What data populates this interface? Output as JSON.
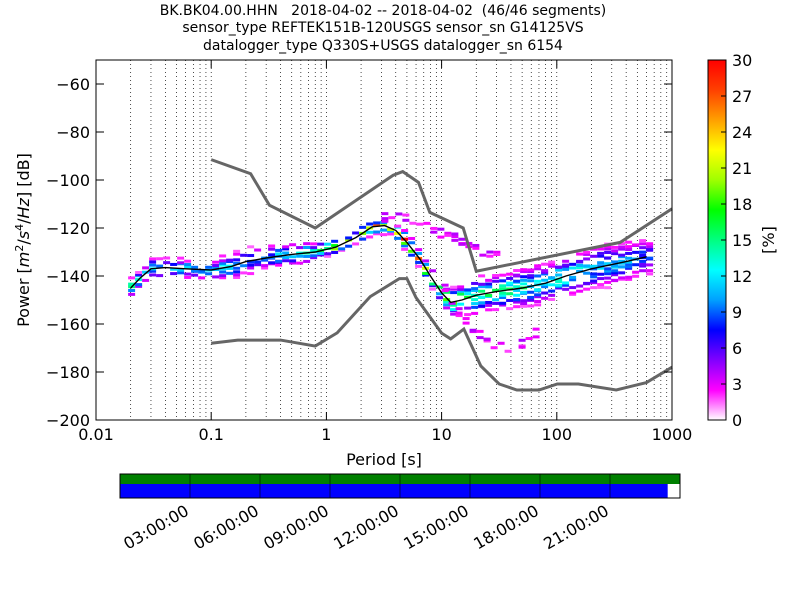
{
  "title": {
    "line1": "BK.BK04.00.HHN   2018-04-02 -- 2018-04-02  (46/46 segments)",
    "line2": "sensor_type REFTEK151B-120USGS sensor_sn G14125VS",
    "line3": "datalogger_type Q330S+USGS datalogger_sn 6154"
  },
  "chart_data": {
    "type": "heatmap",
    "title": "BK.BK04.00.HHN   2018-04-02 -- 2018-04-02  (46/46 segments)",
    "xlabel": "Period [s]",
    "ylabel": "Power [m²/s⁴/Hz] [dB]",
    "x_scale": "log",
    "xlim": [
      0.01,
      1000
    ],
    "ylim": [
      -200,
      -50
    ],
    "x_ticks": [
      "0.01",
      "0.1",
      "1",
      "10",
      "100",
      "1000"
    ],
    "y_ticks": [
      "−60",
      "−80",
      "−100",
      "−120",
      "−140",
      "−160",
      "−180",
      "−200"
    ],
    "grid": "vertical dotted",
    "colorbar": {
      "label": "[%]",
      "range": [
        0,
        30
      ],
      "ticks": [
        "30",
        "27",
        "24",
        "21",
        "18",
        "15",
        "12",
        "9",
        "6",
        "3",
        "0"
      ],
      "colormap": [
        "#ffffff",
        "#ff00ff",
        "#8000ff",
        "#0000ff",
        "#00a0ff",
        "#00ffff",
        "#00ff80",
        "#00ff00",
        "#a0ff00",
        "#ffff00",
        "#ffa000",
        "#ff4000",
        "#ff0000"
      ]
    },
    "noise_models": {
      "high": {
        "x": [
          0.1,
          0.22,
          0.32,
          0.8,
          3.8,
          4.6,
          6.3,
          7.9,
          15.4,
          20,
          354.8,
          1000
        ],
        "y": [
          -91.5,
          -97.4,
          -110.5,
          -120,
          -98,
          -96.5,
          -101,
          -113.5,
          -120,
          -138,
          -126,
          -112
        ]
      },
      "low": {
        "x": [
          0.1,
          0.17,
          0.4,
          0.8,
          1.24,
          2.4,
          4.3,
          5,
          6,
          10,
          12,
          15.6,
          21.9,
          31.6,
          45,
          70,
          101,
          154,
          328,
          600,
          1000
        ],
        "y": [
          -168,
          -166.7,
          -166.7,
          -169.2,
          -163.7,
          -148.6,
          -141.1,
          -141.1,
          -149,
          -163.8,
          -166.2,
          -162.1,
          -177.5,
          -185,
          -187.5,
          -187.5,
          -185,
          -185,
          -187.5,
          -184.4,
          -178
        ]
      }
    },
    "mode": {
      "x": [
        0.02,
        0.024,
        0.03,
        0.04,
        0.06,
        0.1,
        0.15,
        0.2,
        0.3,
        0.5,
        0.8,
        1.2,
        1.8,
        2.5,
        3.2,
        4,
        5,
        6.5,
        8,
        10,
        12,
        15,
        20,
        30,
        50,
        80,
        120,
        200,
        400,
        600
      ],
      "y": [
        -145,
        -141,
        -137,
        -136.5,
        -137,
        -137.5,
        -136,
        -134,
        -132.5,
        -131,
        -130,
        -128,
        -124,
        -119.5,
        -119,
        -121,
        -126,
        -133,
        -140,
        -147,
        -151,
        -150,
        -148,
        -146.5,
        -145,
        -143,
        -140,
        -137,
        -134,
        -132
      ]
    },
    "mode_weight": [
      0.55,
      0.45,
      0.4,
      0.35,
      0.35,
      0.4,
      0.4,
      0.35,
      0.35,
      0.45,
      0.55,
      0.75,
      0.85,
      0.95,
      1,
      1,
      0.95,
      0.9,
      0.9,
      0.8,
      0.7,
      0.6,
      0.55,
      0.5,
      0.5,
      0.45,
      0.45,
      0.4,
      0.35,
      0.3
    ],
    "mode_spread_db": [
      4,
      4,
      5,
      5,
      5,
      5,
      6,
      6,
      6,
      5,
      4,
      3,
      3,
      3,
      3,
      3,
      4,
      4,
      4,
      5,
      6,
      7,
      8,
      8,
      9,
      9,
      10,
      10,
      10,
      9
    ],
    "outlier_low": {
      "x": [
        10,
        13,
        18,
        25,
        35,
        50,
        70
      ],
      "y": [
        -143,
        -152,
        -162,
        -167,
        -170,
        -168,
        -163
      ]
    },
    "outlier_high": {
      "x": [
        3,
        4,
        5,
        7,
        10,
        15,
        20,
        30
      ],
      "y": [
        -116,
        -114,
        -115,
        -119,
        -122,
        -125,
        -129,
        -132
      ]
    }
  },
  "timeline": {
    "tick_labels": [
      "03:00:00",
      "06:00:00",
      "09:00:00",
      "12:00:00",
      "15:00:00",
      "18:00:00",
      "21:00:00"
    ],
    "data_coverage": 0.978,
    "gap_coverage": 1.0,
    "coverage_color": "#0000ff",
    "gap_color": "#008000"
  }
}
